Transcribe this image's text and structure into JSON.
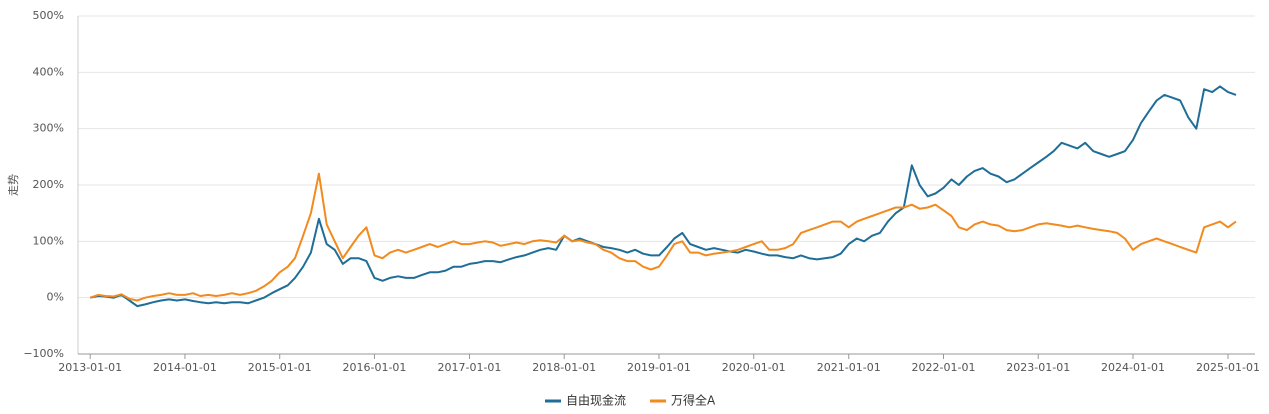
{
  "chart_data": {
    "type": "line",
    "ylabel": "走势",
    "x": [
      "2013-01-01",
      "2013-02-01",
      "2013-03-01",
      "2013-04-01",
      "2013-05-01",
      "2013-06-01",
      "2013-07-01",
      "2013-08-01",
      "2013-09-01",
      "2013-10-01",
      "2013-11-01",
      "2013-12-01",
      "2014-01-01",
      "2014-02-01",
      "2014-03-01",
      "2014-04-01",
      "2014-05-01",
      "2014-06-01",
      "2014-07-01",
      "2014-08-01",
      "2014-09-01",
      "2014-10-01",
      "2014-11-01",
      "2014-12-01",
      "2015-01-01",
      "2015-02-01",
      "2015-03-01",
      "2015-04-01",
      "2015-05-01",
      "2015-06-01",
      "2015-07-01",
      "2015-08-01",
      "2015-09-01",
      "2015-10-01",
      "2015-11-01",
      "2015-12-01",
      "2016-01-01",
      "2016-02-01",
      "2016-03-01",
      "2016-04-01",
      "2016-05-01",
      "2016-06-01",
      "2016-07-01",
      "2016-08-01",
      "2016-09-01",
      "2016-10-01",
      "2016-11-01",
      "2016-12-01",
      "2017-01-01",
      "2017-02-01",
      "2017-03-01",
      "2017-04-01",
      "2017-05-01",
      "2017-06-01",
      "2017-07-01",
      "2017-08-01",
      "2017-09-01",
      "2017-10-01",
      "2017-11-01",
      "2017-12-01",
      "2018-01-01",
      "2018-02-01",
      "2018-03-01",
      "2018-04-01",
      "2018-05-01",
      "2018-06-01",
      "2018-07-01",
      "2018-08-01",
      "2018-09-01",
      "2018-10-01",
      "2018-11-01",
      "2018-12-01",
      "2019-01-01",
      "2019-02-01",
      "2019-03-01",
      "2019-04-01",
      "2019-05-01",
      "2019-06-01",
      "2019-07-01",
      "2019-08-01",
      "2019-09-01",
      "2019-10-01",
      "2019-11-01",
      "2019-12-01",
      "2020-01-01",
      "2020-02-01",
      "2020-03-01",
      "2020-04-01",
      "2020-05-01",
      "2020-06-01",
      "2020-07-01",
      "2020-08-01",
      "2020-09-01",
      "2020-10-01",
      "2020-11-01",
      "2020-12-01",
      "2021-01-01",
      "2021-02-01",
      "2021-03-01",
      "2021-04-01",
      "2021-05-01",
      "2021-06-01",
      "2021-07-01",
      "2021-08-01",
      "2021-09-01",
      "2021-10-01",
      "2021-11-01",
      "2021-12-01",
      "2022-01-01",
      "2022-02-01",
      "2022-03-01",
      "2022-04-01",
      "2022-05-01",
      "2022-06-01",
      "2022-07-01",
      "2022-08-01",
      "2022-09-01",
      "2022-10-01",
      "2022-11-01",
      "2022-12-01",
      "2023-01-01",
      "2023-02-01",
      "2023-03-01",
      "2023-04-01",
      "2023-05-01",
      "2023-06-01",
      "2023-07-01",
      "2023-08-01",
      "2023-09-01",
      "2023-10-01",
      "2023-11-01",
      "2023-12-01",
      "2024-01-01",
      "2024-02-01",
      "2024-03-01",
      "2024-04-01",
      "2024-05-01",
      "2024-06-01",
      "2024-07-01",
      "2024-08-01",
      "2024-09-01",
      "2024-10-01",
      "2024-11-01",
      "2024-12-01",
      "2025-01-01",
      "2025-02-01"
    ],
    "series": [
      {
        "name": "自由现金流",
        "color": "#1f6e98",
        "values": [
          0,
          3,
          2,
          0,
          5,
          -5,
          -15,
          -12,
          -8,
          -5,
          -3,
          -5,
          -3,
          -6,
          -8,
          -10,
          -8,
          -10,
          -8,
          -8,
          -10,
          -5,
          0,
          8,
          15,
          22,
          35,
          55,
          80,
          140,
          95,
          85,
          60,
          70,
          70,
          65,
          35,
          30,
          35,
          38,
          35,
          35,
          40,
          45,
          45,
          48,
          55,
          55,
          60,
          62,
          65,
          65,
          63,
          68,
          72,
          75,
          80,
          85,
          88,
          85,
          110,
          100,
          105,
          100,
          95,
          90,
          88,
          85,
          80,
          85,
          78,
          75,
          75,
          90,
          105,
          115,
          95,
          90,
          85,
          88,
          85,
          82,
          80,
          85,
          82,
          78,
          75,
          75,
          72,
          70,
          75,
          70,
          68,
          70,
          72,
          78,
          95,
          105,
          100,
          110,
          115,
          135,
          150,
          160,
          235,
          200,
          180,
          185,
          195,
          210,
          200,
          215,
          225,
          230,
          220,
          215,
          205,
          210,
          220,
          230,
          240,
          250,
          260,
          275,
          270,
          265,
          275,
          260,
          255,
          250,
          255,
          260,
          280,
          310,
          330,
          350,
          360,
          355,
          350,
          320,
          300,
          370,
          365,
          375,
          365,
          360
        ]
      },
      {
        "name": "万得全A",
        "color": "#f28a1e",
        "values": [
          0,
          5,
          3,
          2,
          6,
          -2,
          -5,
          0,
          3,
          5,
          8,
          5,
          5,
          8,
          3,
          5,
          3,
          5,
          8,
          5,
          8,
          12,
          20,
          30,
          45,
          55,
          70,
          110,
          150,
          220,
          130,
          100,
          70,
          90,
          110,
          125,
          75,
          70,
          80,
          85,
          80,
          85,
          90,
          95,
          90,
          95,
          100,
          95,
          95,
          98,
          100,
          98,
          92,
          95,
          98,
          95,
          100,
          102,
          100,
          98,
          110,
          100,
          102,
          98,
          95,
          85,
          80,
          70,
          65,
          65,
          55,
          50,
          55,
          75,
          95,
          100,
          80,
          80,
          75,
          78,
          80,
          82,
          85,
          90,
          95,
          100,
          85,
          85,
          88,
          95,
          115,
          120,
          125,
          130,
          135,
          135,
          125,
          135,
          140,
          145,
          150,
          155,
          160,
          160,
          165,
          158,
          160,
          165,
          155,
          145,
          125,
          120,
          130,
          135,
          130,
          128,
          120,
          118,
          120,
          125,
          130,
          132,
          130,
          128,
          125,
          128,
          125,
          122,
          120,
          118,
          115,
          105,
          85,
          95,
          100,
          105,
          100,
          95,
          90,
          85,
          80,
          125,
          130,
          135,
          125,
          135
        ]
      }
    ],
    "xlim": [
      "2012-11-15",
      "2025-04-15"
    ],
    "xticks": [
      "2013-01-01",
      "2014-01-01",
      "2015-01-01",
      "2016-01-01",
      "2017-01-01",
      "2018-01-01",
      "2019-01-01",
      "2020-01-01",
      "2021-01-01",
      "2022-01-01",
      "2023-01-01",
      "2024-01-01",
      "2025-01-01"
    ],
    "ylim": [
      -100,
      500
    ],
    "yticks": [
      {
        "value": -100,
        "label": "−100%"
      },
      {
        "value": 0,
        "label": "0%"
      },
      {
        "value": 100,
        "label": "100%"
      },
      {
        "value": 200,
        "label": "200%"
      },
      {
        "value": 300,
        "label": "300%"
      },
      {
        "value": 400,
        "label": "400%"
      },
      {
        "value": 500,
        "label": "500%"
      }
    ],
    "grid": true,
    "legend": "bottom"
  }
}
